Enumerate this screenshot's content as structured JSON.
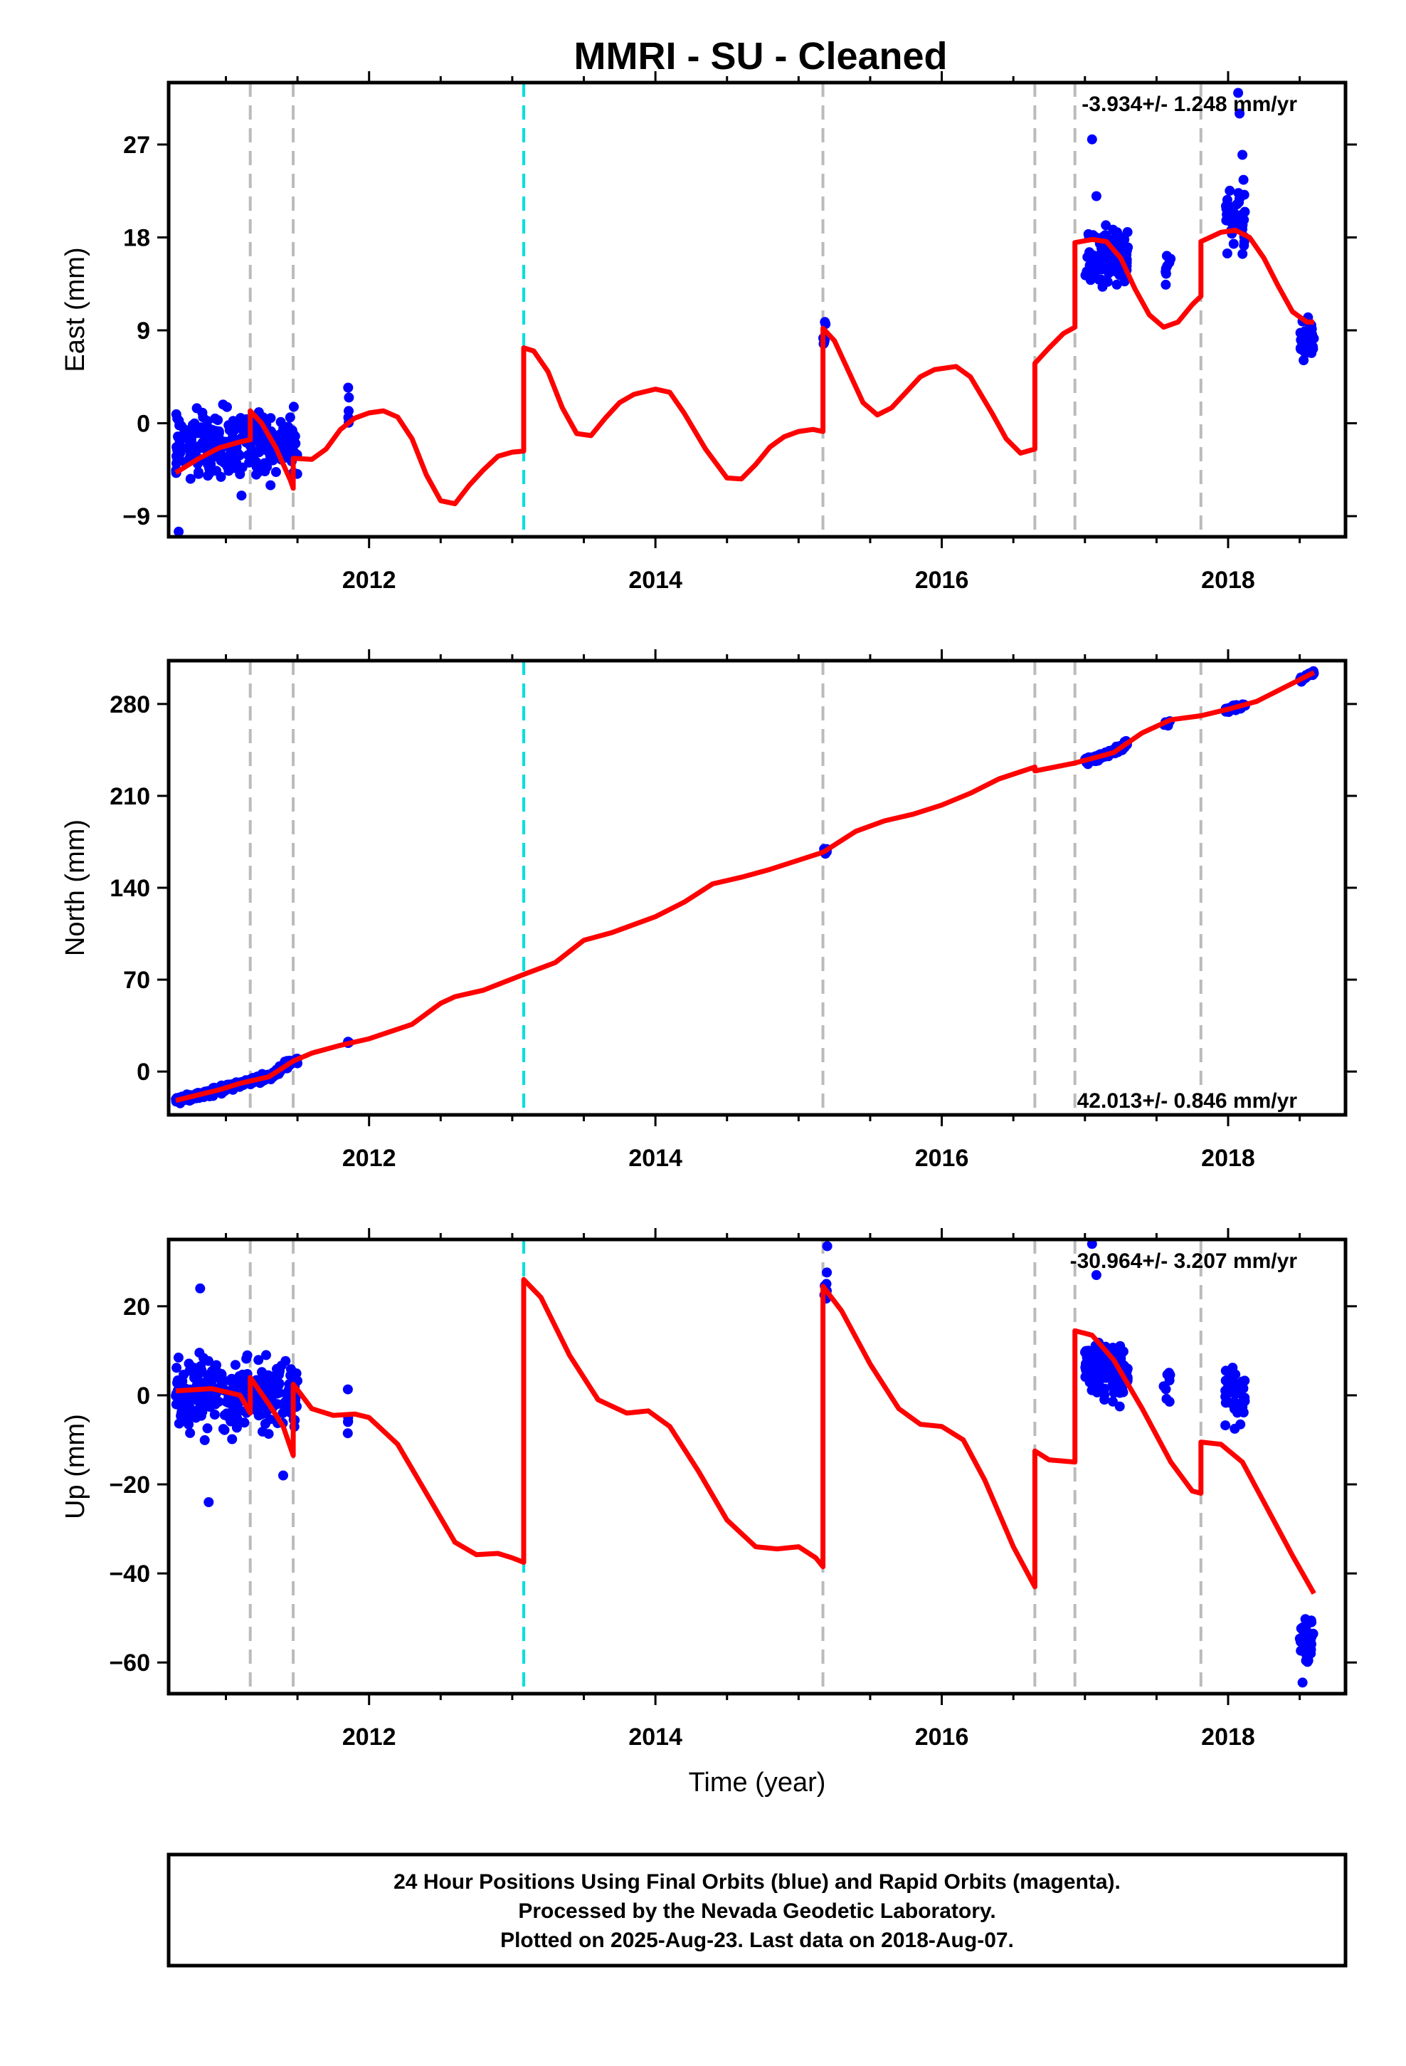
{
  "title": "MMRI  - SU - Cleaned",
  "footer": {
    "lines": [
      "24 Hour Positions Using Final Orbits (blue) and Rapid Orbits (magenta).",
      "Processed by the Nevada Geodetic Laboratory.",
      "Plotted on 2025-Aug-23. Last data on 2018-Aug-07."
    ]
  },
  "colors": {
    "data_points": "#0000ff",
    "model_line": "#ff0000",
    "equipment_change": "#bbbbbb",
    "earthquake": "#00e0e0"
  },
  "chart_data": [
    {
      "type": "scatter",
      "name": "east-panel",
      "xlabel": "",
      "ylabel": "East (mm)",
      "xlim": [
        2010.6,
        2018.82
      ],
      "ylim": [
        -11,
        33
      ],
      "xticks": [
        2012,
        2014,
        2016,
        2018
      ],
      "yticks": [
        -9,
        0,
        9,
        18,
        27
      ],
      "rate_label": "-3.934+/- 1.248 mm/yr",
      "rate_position": "top-right",
      "grey_lines": [
        2011.17,
        2011.47,
        2015.17,
        2016.65,
        2016.93,
        2017.81
      ],
      "cyan_lines": [
        2013.08
      ],
      "scatter_clusters": [
        {
          "x0": 2010.65,
          "x1": 2011.5,
          "center": -2,
          "spread": 3,
          "n": 300
        },
        {
          "x0": 2011.85,
          "x1": 2011.86,
          "center": 1,
          "spread": 3,
          "n": 5
        },
        {
          "x0": 2015.17,
          "x1": 2015.2,
          "center": 8.5,
          "spread": 2.5,
          "n": 6
        },
        {
          "x0": 2017.0,
          "x1": 2017.3,
          "center": 16,
          "spread": 2.5,
          "n": 110
        },
        {
          "x0": 2017.55,
          "x1": 2017.6,
          "center": 15,
          "spread": 1.5,
          "n": 8
        },
        {
          "x0": 2017.98,
          "x1": 2018.12,
          "center": 20,
          "spread": 3,
          "n": 45
        },
        {
          "x0": 2018.5,
          "x1": 2018.6,
          "center": 8,
          "spread": 1.8,
          "n": 40
        }
      ],
      "outliers": [
        [
          2010.67,
          -10.5
        ],
        [
          2017.05,
          27.5
        ],
        [
          2018.07,
          32
        ],
        [
          2018.08,
          30
        ],
        [
          2017.08,
          22
        ],
        [
          2018.1,
          26
        ]
      ],
      "model_line": [
        [
          2010.65,
          -4.8
        ],
        [
          2010.8,
          -3.5
        ],
        [
          2010.95,
          -2.4
        ],
        [
          2011.1,
          -1.8
        ],
        [
          2011.17,
          -1.6
        ],
        [
          2011.17,
          1.2
        ],
        [
          2011.25,
          0.0
        ],
        [
          2011.35,
          -2.4
        ],
        [
          2011.45,
          -5.5
        ],
        [
          2011.47,
          -6.3
        ],
        [
          2011.47,
          -3.4
        ],
        [
          2011.6,
          -3.5
        ],
        [
          2011.7,
          -2.5
        ],
        [
          2011.8,
          -0.6
        ],
        [
          2011.9,
          0.5
        ],
        [
          2012.0,
          1.0
        ],
        [
          2012.1,
          1.2
        ],
        [
          2012.2,
          0.6
        ],
        [
          2012.3,
          -1.5
        ],
        [
          2012.4,
          -5.0
        ],
        [
          2012.5,
          -7.5
        ],
        [
          2012.6,
          -7.8
        ],
        [
          2012.7,
          -6.0
        ],
        [
          2012.8,
          -4.5
        ],
        [
          2012.9,
          -3.2
        ],
        [
          2013.0,
          -2.8
        ],
        [
          2013.08,
          -2.7
        ],
        [
          2013.08,
          7.3
        ],
        [
          2013.15,
          7.0
        ],
        [
          2013.25,
          5.0
        ],
        [
          2013.35,
          1.5
        ],
        [
          2013.45,
          -1.0
        ],
        [
          2013.55,
          -1.2
        ],
        [
          2013.65,
          0.5
        ],
        [
          2013.75,
          2.0
        ],
        [
          2013.85,
          2.8
        ],
        [
          2014.0,
          3.3
        ],
        [
          2014.1,
          3.0
        ],
        [
          2014.2,
          1.0
        ],
        [
          2014.35,
          -2.5
        ],
        [
          2014.5,
          -5.3
        ],
        [
          2014.6,
          -5.4
        ],
        [
          2014.7,
          -4.0
        ],
        [
          2014.8,
          -2.3
        ],
        [
          2014.9,
          -1.3
        ],
        [
          2015.0,
          -0.8
        ],
        [
          2015.1,
          -0.6
        ],
        [
          2015.17,
          -0.8
        ],
        [
          2015.17,
          9.2
        ],
        [
          2015.25,
          8.0
        ],
        [
          2015.35,
          5.0
        ],
        [
          2015.45,
          2.0
        ],
        [
          2015.55,
          0.8
        ],
        [
          2015.65,
          1.5
        ],
        [
          2015.75,
          3.0
        ],
        [
          2015.85,
          4.5
        ],
        [
          2015.95,
          5.2
        ],
        [
          2016.1,
          5.5
        ],
        [
          2016.2,
          4.5
        ],
        [
          2016.35,
          1.0
        ],
        [
          2016.45,
          -1.5
        ],
        [
          2016.55,
          -2.9
        ],
        [
          2016.65,
          -2.5
        ],
        [
          2016.65,
          5.8
        ],
        [
          2016.75,
          7.3
        ],
        [
          2016.85,
          8.7
        ],
        [
          2016.93,
          9.3
        ],
        [
          2016.93,
          17.5
        ],
        [
          2017.05,
          17.8
        ],
        [
          2017.15,
          17.6
        ],
        [
          2017.25,
          16.0
        ],
        [
          2017.35,
          13.0
        ],
        [
          2017.45,
          10.5
        ],
        [
          2017.55,
          9.3
        ],
        [
          2017.65,
          9.8
        ],
        [
          2017.75,
          11.5
        ],
        [
          2017.81,
          12.3
        ],
        [
          2017.81,
          17.6
        ],
        [
          2017.95,
          18.5
        ],
        [
          2018.05,
          18.7
        ],
        [
          2018.15,
          18.0
        ],
        [
          2018.25,
          16.0
        ],
        [
          2018.35,
          13.3
        ],
        [
          2018.45,
          10.8
        ],
        [
          2018.55,
          9.8
        ],
        [
          2018.6,
          9.8
        ]
      ]
    },
    {
      "type": "scatter",
      "name": "north-panel",
      "xlabel": "",
      "ylabel": "North (mm)",
      "xlim": [
        2010.6,
        2018.82
      ],
      "ylim": [
        -33,
        313
      ],
      "xticks": [
        2012,
        2014,
        2016,
        2018
      ],
      "yticks": [
        0,
        70,
        140,
        210,
        280
      ],
      "rate_label": "42.013+/- 0.846 mm/yr",
      "rate_position": "bottom-right",
      "grey_lines": [
        2011.17,
        2011.47,
        2015.17,
        2016.65,
        2016.93,
        2017.81
      ],
      "cyan_lines": [
        2013.08
      ],
      "scatter_clusters": [
        {
          "x0": 2010.65,
          "x1": 2011.5,
          "trend": true,
          "spread": 2.5,
          "n": 300
        },
        {
          "x0": 2011.85,
          "x1": 2011.86,
          "trend": true,
          "spread": 2,
          "n": 5
        },
        {
          "x0": 2015.17,
          "x1": 2015.2,
          "trend": true,
          "spread": 2,
          "n": 6
        },
        {
          "x0": 2017.0,
          "x1": 2017.3,
          "trend": true,
          "spread": 2.5,
          "n": 110
        },
        {
          "x0": 2017.55,
          "x1": 2017.6,
          "trend": true,
          "spread": 2,
          "n": 8
        },
        {
          "x0": 2017.98,
          "x1": 2018.12,
          "trend": true,
          "spread": 2,
          "n": 45
        },
        {
          "x0": 2018.5,
          "x1": 2018.6,
          "trend": true,
          "spread": 1.5,
          "n": 40
        }
      ],
      "outliers": [],
      "model_line": [
        [
          2010.65,
          -22
        ],
        [
          2010.8,
          -18
        ],
        [
          2010.95,
          -14
        ],
        [
          2011.1,
          -9
        ],
        [
          2011.3,
          -4
        ],
        [
          2011.47,
          8
        ],
        [
          2011.6,
          14
        ],
        [
          2011.8,
          20
        ],
        [
          2012.0,
          25
        ],
        [
          2012.3,
          36
        ],
        [
          2012.5,
          52
        ],
        [
          2012.6,
          57
        ],
        [
          2012.8,
          62
        ],
        [
          2013.08,
          74
        ],
        [
          2013.3,
          83
        ],
        [
          2013.5,
          100
        ],
        [
          2013.7,
          106
        ],
        [
          2014.0,
          118
        ],
        [
          2014.2,
          129
        ],
        [
          2014.4,
          143
        ],
        [
          2014.6,
          148
        ],
        [
          2014.8,
          154
        ],
        [
          2015.17,
          167
        ],
        [
          2015.4,
          183
        ],
        [
          2015.6,
          191
        ],
        [
          2015.8,
          196
        ],
        [
          2016.0,
          203
        ],
        [
          2016.2,
          212
        ],
        [
          2016.4,
          223
        ],
        [
          2016.65,
          232
        ],
        [
          2016.65,
          229
        ],
        [
          2016.93,
          235
        ],
        [
          2017.2,
          243
        ],
        [
          2017.4,
          258
        ],
        [
          2017.6,
          268
        ],
        [
          2017.81,
          271
        ],
        [
          2018.0,
          276
        ],
        [
          2018.2,
          282
        ],
        [
          2018.4,
          293
        ],
        [
          2018.6,
          304
        ]
      ]
    },
    {
      "type": "scatter",
      "name": "up-panel",
      "xlabel": "Time (year)",
      "ylabel": "Up (mm)",
      "xlim": [
        2010.6,
        2018.82
      ],
      "ylim": [
        -67,
        35
      ],
      "xticks": [
        2012,
        2014,
        2016,
        2018
      ],
      "yticks": [
        -60,
        -40,
        -20,
        0,
        20
      ],
      "rate_label": "-30.964+/- 3.207 mm/yr",
      "rate_position": "top-right",
      "grey_lines": [
        2011.17,
        2011.47,
        2015.17,
        2016.65,
        2016.93,
        2017.81
      ],
      "cyan_lines": [
        2013.08
      ],
      "scatter_clusters": [
        {
          "x0": 2010.65,
          "x1": 2011.5,
          "center": 0,
          "spread": 7,
          "n": 300
        },
        {
          "x0": 2011.85,
          "x1": 2011.86,
          "center": -5,
          "spread": 6,
          "n": 5
        },
        {
          "x0": 2015.17,
          "x1": 2015.2,
          "center": 24,
          "spread": 4,
          "n": 6
        },
        {
          "x0": 2017.0,
          "x1": 2017.3,
          "center": 6,
          "spread": 6,
          "n": 110
        },
        {
          "x0": 2017.55,
          "x1": 2017.6,
          "center": 3,
          "spread": 4,
          "n": 8
        },
        {
          "x0": 2017.98,
          "x1": 2018.12,
          "center": 0,
          "spread": 6,
          "n": 45
        },
        {
          "x0": 2018.5,
          "x1": 2018.6,
          "center": -55,
          "spread": 4,
          "n": 40
        }
      ],
      "outliers": [
        [
          2010.88,
          -24
        ],
        [
          2010.82,
          24
        ],
        [
          2015.2,
          33.5
        ],
        [
          2017.05,
          34
        ],
        [
          2017.08,
          27
        ],
        [
          2018.52,
          -64.5
        ],
        [
          2011.4,
          -18
        ]
      ],
      "model_line": [
        [
          2010.65,
          1
        ],
        [
          2010.9,
          1.5
        ],
        [
          2011.1,
          0
        ],
        [
          2011.17,
          -4
        ],
        [
          2011.17,
          4
        ],
        [
          2011.3,
          -2
        ],
        [
          2011.4,
          -7
        ],
        [
          2011.47,
          -13.5
        ],
        [
          2011.47,
          2.5
        ],
        [
          2011.6,
          -3
        ],
        [
          2011.75,
          -4.5
        ],
        [
          2011.9,
          -4.2
        ],
        [
          2012.0,
          -5
        ],
        [
          2012.2,
          -11
        ],
        [
          2012.4,
          -22
        ],
        [
          2012.6,
          -33
        ],
        [
          2012.75,
          -35.8
        ],
        [
          2012.9,
          -35.5
        ],
        [
          2013.0,
          -36.5
        ],
        [
          2013.08,
          -37.5
        ],
        [
          2013.08,
          26
        ],
        [
          2013.2,
          22
        ],
        [
          2013.4,
          9
        ],
        [
          2013.6,
          -1
        ],
        [
          2013.8,
          -4
        ],
        [
          2013.95,
          -3.5
        ],
        [
          2014.1,
          -7
        ],
        [
          2014.3,
          -17
        ],
        [
          2014.5,
          -28
        ],
        [
          2014.7,
          -34
        ],
        [
          2014.85,
          -34.5
        ],
        [
          2015.0,
          -34
        ],
        [
          2015.12,
          -36.5
        ],
        [
          2015.17,
          -38.5
        ],
        [
          2015.17,
          24.5
        ],
        [
          2015.3,
          19
        ],
        [
          2015.5,
          7
        ],
        [
          2015.7,
          -3
        ],
        [
          2015.85,
          -6.5
        ],
        [
          2016.0,
          -7
        ],
        [
          2016.15,
          -10
        ],
        [
          2016.3,
          -19
        ],
        [
          2016.5,
          -34
        ],
        [
          2016.65,
          -43
        ],
        [
          2016.65,
          -12.5
        ],
        [
          2016.75,
          -14.5
        ],
        [
          2016.93,
          -15
        ],
        [
          2016.93,
          14.5
        ],
        [
          2017.05,
          13.5
        ],
        [
          2017.2,
          8
        ],
        [
          2017.4,
          -3
        ],
        [
          2017.6,
          -15
        ],
        [
          2017.75,
          -21.5
        ],
        [
          2017.81,
          -22
        ],
        [
          2017.81,
          -10.5
        ],
        [
          2017.95,
          -11
        ],
        [
          2018.1,
          -15
        ],
        [
          2018.3,
          -27
        ],
        [
          2018.45,
          -36
        ],
        [
          2018.6,
          -44.5
        ]
      ]
    }
  ]
}
